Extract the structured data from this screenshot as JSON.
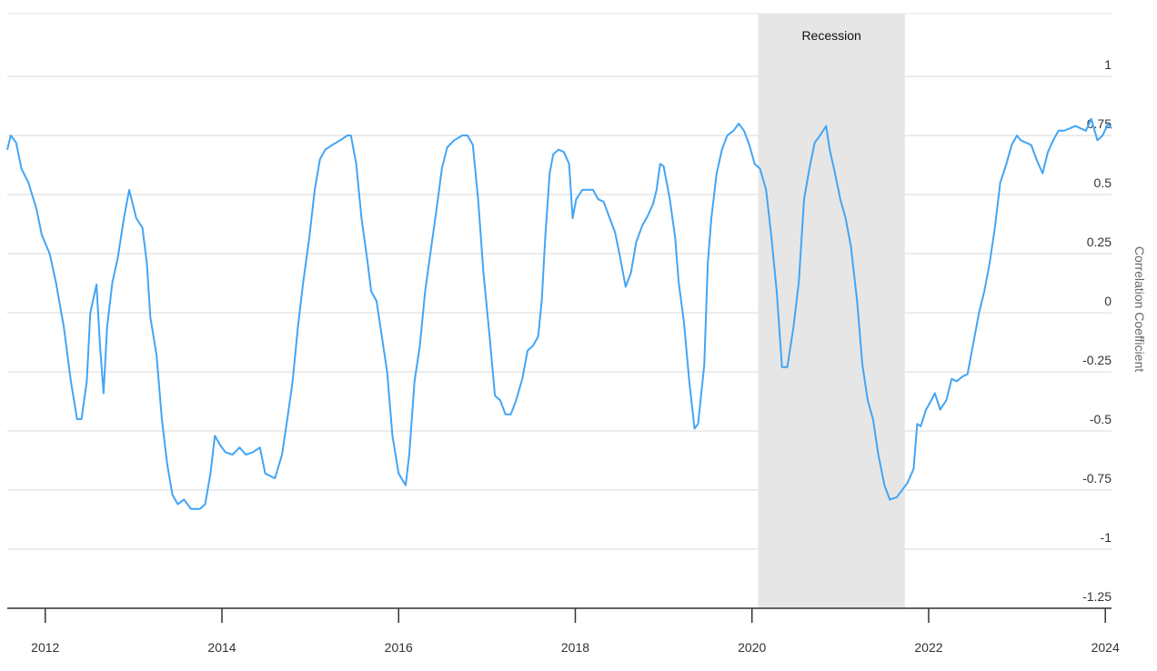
{
  "chart_data": {
    "type": "line",
    "y_axis_label": "Correlation Coefficient",
    "xlim": [
      2011.57,
      2024.07
    ],
    "ylim": [
      -1.25,
      1.25
    ],
    "xticks": [
      2012,
      2014,
      2016,
      2018,
      2020,
      2022,
      2024
    ],
    "yticks": [
      -1.25,
      -1,
      -0.75,
      -0.5,
      -0.25,
      0,
      0.25,
      0.5,
      0.75,
      1
    ],
    "grid": true,
    "shaded_regions": [
      {
        "label": "Recession",
        "xmin": 2020.07,
        "xmax": 2021.73,
        "color": "#e6e6e6"
      }
    ],
    "x": [
      2011.57,
      2011.61,
      2011.67,
      2011.73,
      2011.81,
      2011.9,
      2011.96,
      2012.05,
      2012.12,
      2012.21,
      2012.29,
      2012.36,
      2012.41,
      2012.47,
      2012.51,
      2012.58,
      2012.62,
      2012.66,
      2012.7,
      2012.76,
      2012.82,
      2012.89,
      2012.95,
      2013.03,
      2013.1,
      2013.15,
      2013.19,
      2013.26,
      2013.32,
      2013.38,
      2013.44,
      2013.5,
      2013.57,
      2013.65,
      2013.75,
      2013.81,
      2013.87,
      2013.92,
      2013.98,
      2014.04,
      2014.12,
      2014.2,
      2014.27,
      2014.35,
      2014.43,
      2014.49,
      2014.6,
      2014.68,
      2014.74,
      2014.8,
      2014.86,
      2014.92,
      2014.99,
      2015.05,
      2015.11,
      2015.17,
      2015.25,
      2015.34,
      2015.42,
      2015.46,
      2015.52,
      2015.58,
      2015.65,
      2015.69,
      2015.75,
      2015.81,
      2015.87,
      2015.93,
      2016.0,
      2016.08,
      2016.12,
      2016.18,
      2016.24,
      2016.3,
      2016.37,
      2016.43,
      2016.49,
      2016.55,
      2016.63,
      2016.72,
      2016.78,
      2016.84,
      2016.9,
      2016.96,
      2017.03,
      2017.09,
      2017.15,
      2017.21,
      2017.27,
      2017.33,
      2017.4,
      2017.46,
      2017.52,
      2017.58,
      2017.62,
      2017.66,
      2017.71,
      2017.75,
      2017.81,
      2017.87,
      2017.93,
      2017.97,
      2018.01,
      2018.08,
      2018.14,
      2018.2,
      2018.26,
      2018.32,
      2018.39,
      2018.45,
      2018.51,
      2018.57,
      2018.63,
      2018.69,
      2018.76,
      2018.82,
      2018.88,
      2018.92,
      2018.96,
      2019.0,
      2019.07,
      2019.13,
      2019.17,
      2019.23,
      2019.29,
      2019.35,
      2019.39,
      2019.46,
      2019.5,
      2019.54,
      2019.6,
      2019.66,
      2019.72,
      2019.79,
      2019.85,
      2019.91,
      2019.97,
      2020.03,
      2020.09,
      2020.16,
      2020.22,
      2020.28,
      2020.34,
      2020.4,
      2020.47,
      2020.53,
      2020.59,
      2020.65,
      2020.71,
      2020.77,
      2020.84,
      2020.88,
      2020.94,
      2021.0,
      2021.06,
      2021.12,
      2021.19,
      2021.25,
      2021.31,
      2021.37,
      2021.43,
      2021.5,
      2021.56,
      2021.64,
      2021.7,
      2021.76,
      2021.83,
      2021.87,
      2021.91,
      2021.97,
      2022.03,
      2022.07,
      2022.13,
      2022.2,
      2022.26,
      2022.32,
      2022.38,
      2022.44,
      2022.5,
      2022.57,
      2022.63,
      2022.69,
      2022.75,
      2022.81,
      2022.88,
      2022.94,
      2023.0,
      2023.04,
      2023.1,
      2023.16,
      2023.23,
      2023.29,
      2023.35,
      2023.41,
      2023.47,
      2023.53,
      2023.6,
      2023.66,
      2023.72,
      2023.78,
      2023.84,
      2023.91,
      2023.97,
      2024.03,
      2024.07
    ],
    "series": [
      {
        "color": "#42a5f5",
        "values": [
          0.69,
          0.75,
          0.72,
          0.61,
          0.55,
          0.44,
          0.33,
          0.25,
          0.13,
          -0.06,
          -0.29,
          -0.45,
          -0.45,
          -0.29,
          0,
          0.12,
          -0.14,
          -0.34,
          -0.06,
          0.13,
          0.23,
          0.4,
          0.52,
          0.4,
          0.36,
          0.21,
          -0.02,
          -0.18,
          -0.45,
          -0.64,
          -0.77,
          -0.81,
          -0.79,
          -0.83,
          -0.83,
          -0.81,
          -0.68,
          -0.52,
          -0.56,
          -0.59,
          -0.6,
          -0.57,
          -0.6,
          -0.59,
          -0.57,
          -0.68,
          -0.7,
          -0.6,
          -0.45,
          -0.29,
          -0.06,
          0.13,
          0.32,
          0.52,
          0.65,
          0.69,
          0.71,
          0.73,
          0.75,
          0.75,
          0.63,
          0.4,
          0.21,
          0.09,
          0.05,
          -0.1,
          -0.25,
          -0.52,
          -0.68,
          -0.73,
          -0.6,
          -0.29,
          -0.14,
          0.09,
          0.28,
          0.44,
          0.61,
          0.7,
          0.73,
          0.75,
          0.75,
          0.71,
          0.48,
          0.17,
          -0.1,
          -0.35,
          -0.37,
          -0.43,
          -0.43,
          -0.37,
          -0.28,
          -0.16,
          -0.14,
          -0.1,
          0.05,
          0.32,
          0.59,
          0.67,
          0.69,
          0.68,
          0.63,
          0.4,
          0.48,
          0.52,
          0.52,
          0.52,
          0.48,
          0.47,
          0.4,
          0.34,
          0.23,
          0.11,
          0.17,
          0.3,
          0.37,
          0.41,
          0.46,
          0.52,
          0.63,
          0.62,
          0.48,
          0.32,
          0.13,
          -0.04,
          -0.29,
          -0.49,
          -0.47,
          -0.22,
          0.21,
          0.4,
          0.59,
          0.69,
          0.75,
          0.77,
          0.8,
          0.77,
          0.71,
          0.63,
          0.61,
          0.52,
          0.32,
          0.09,
          -0.23,
          -0.23,
          -0.06,
          0.13,
          0.48,
          0.61,
          0.72,
          0.75,
          0.79,
          0.69,
          0.59,
          0.48,
          0.4,
          0.28,
          0.05,
          -0.22,
          -0.37,
          -0.45,
          -0.6,
          -0.73,
          -0.79,
          -0.78,
          -0.75,
          -0.72,
          -0.66,
          -0.47,
          -0.48,
          -0.41,
          -0.37,
          -0.34,
          -0.41,
          -0.37,
          -0.28,
          -0.29,
          -0.27,
          -0.26,
          -0.14,
          0,
          0.09,
          0.21,
          0.36,
          0.55,
          0.63,
          0.71,
          0.75,
          0.73,
          0.72,
          0.71,
          0.64,
          0.59,
          0.68,
          0.73,
          0.77,
          0.77,
          0.78,
          0.79,
          0.78,
          0.77,
          0.82,
          0.73,
          0.75,
          0.8,
          0.78
        ]
      }
    ]
  }
}
